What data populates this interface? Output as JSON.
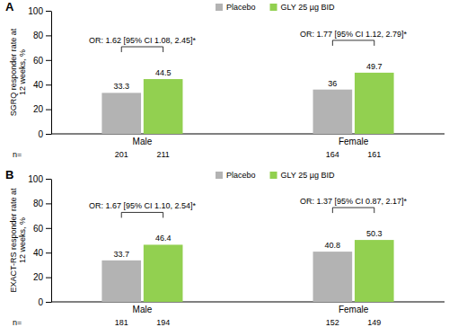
{
  "chart_data": [
    {
      "type": "bar",
      "title": "A",
      "y_label": "SGRQ responder rate at 12 weeks, %",
      "categories": [
        "Male",
        "Female"
      ],
      "series": [
        {
          "name": "Placebo",
          "color": "#b3b3b3",
          "values": [
            33.3,
            36
          ],
          "n": [
            201,
            164
          ]
        },
        {
          "name": "GLY 25 µg BID",
          "color": "#92d050",
          "values": [
            44.5,
            49.7
          ],
          "n": [
            211,
            161
          ]
        }
      ],
      "annotations": [
        "OR: 1.62 [95% CI 1.08, 2.45]*",
        "OR: 1.77 [95% CI 1.12, 2.79]*"
      ],
      "n_label": "n=",
      "ylim": [
        0,
        100
      ],
      "yticks": [
        0,
        20,
        40,
        60,
        80,
        100
      ],
      "data_labels": true,
      "legend": "top",
      "grid": false
    },
    {
      "type": "bar",
      "title": "B",
      "y_label": "EXACT-RS responder rate at 12 weeks, %",
      "categories": [
        "Male",
        "Female"
      ],
      "series": [
        {
          "name": "Placebo",
          "color": "#b3b3b3",
          "values": [
            33.7,
            40.8
          ],
          "n": [
            181,
            152
          ]
        },
        {
          "name": "GLY 25 µg BID",
          "color": "#92d050",
          "values": [
            46.4,
            50.3
          ],
          "n": [
            194,
            149
          ]
        }
      ],
      "annotations": [
        "OR: 1.67 [95% CI 1.10, 2.54]*",
        "OR: 1.37 [95% CI 0.87, 2.17]*"
      ],
      "n_label": "n=",
      "ylim": [
        0,
        100
      ],
      "yticks": [
        0,
        20,
        40,
        60,
        80,
        100
      ],
      "data_labels": true,
      "legend": "top",
      "grid": false
    }
  ]
}
